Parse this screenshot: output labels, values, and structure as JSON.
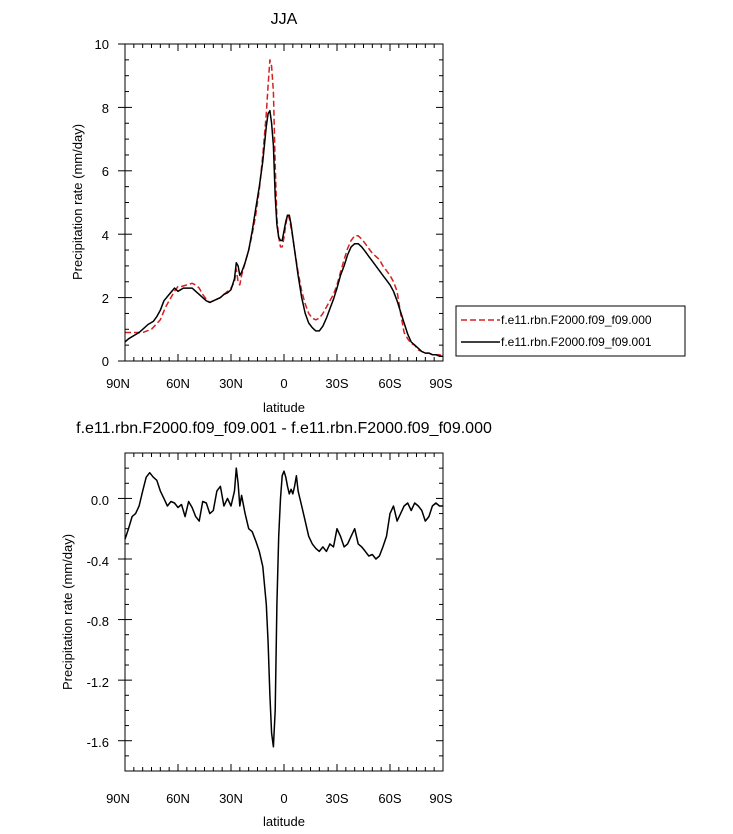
{
  "colors": {
    "ctrl": "#d62020",
    "test": "#000000",
    "axis": "#000000"
  },
  "chart_data": [
    {
      "type": "line",
      "title": "JJA",
      "xlabel": "latitude",
      "ylabel": "Precipitation rate (mm/day)",
      "xlim": [
        90,
        -90
      ],
      "ylim": [
        0,
        10
      ],
      "x_ticks": [
        90,
        60,
        30,
        0,
        -30,
        -60,
        -90
      ],
      "x_tick_labels": [
        "90N",
        "60N",
        "30N",
        "0",
        "30S",
        "60S",
        "90S"
      ],
      "y_ticks": [
        0,
        2,
        4,
        6,
        8,
        10
      ],
      "y_tick_labels": [
        "0",
        "2",
        "4",
        "6",
        "8",
        "10"
      ],
      "legend_position": "right",
      "series": [
        {
          "name": "f.e11.rbn.F2000.f09_f09.000",
          "style": "dashed",
          "color": "#d62020",
          "x": [
            90,
            85,
            80,
            75,
            70,
            67,
            64,
            62,
            60,
            58,
            55,
            52,
            50,
            48,
            46,
            44,
            42,
            40,
            38,
            36,
            34,
            32,
            30,
            28,
            27,
            26,
            25,
            24,
            22,
            20,
            18,
            16,
            14,
            12,
            10,
            9,
            8,
            7,
            6,
            5,
            4,
            3,
            2,
            1,
            0,
            -1,
            -2,
            -3,
            -4,
            -5,
            -6,
            -8,
            -10,
            -12,
            -14,
            -16,
            -18,
            -20,
            -22,
            -24,
            -26,
            -28,
            -30,
            -32,
            -34,
            -36,
            -38,
            -40,
            -42,
            -44,
            -46,
            -48,
            -50,
            -52,
            -54,
            -56,
            -58,
            -60,
            -62,
            -64,
            -66,
            -68,
            -70,
            -72,
            -74,
            -76,
            -78,
            -80,
            -82,
            -84,
            -86,
            -88,
            -90
          ],
          "y": [
            0.9,
            0.9,
            0.9,
            1.0,
            1.3,
            1.7,
            2.0,
            2.2,
            2.35,
            2.35,
            2.4,
            2.45,
            2.4,
            2.3,
            2.1,
            1.95,
            1.85,
            1.9,
            1.95,
            2.0,
            2.1,
            2.2,
            2.3,
            2.5,
            2.9,
            2.5,
            2.4,
            2.7,
            3.1,
            3.5,
            4.0,
            4.6,
            5.4,
            6.5,
            7.8,
            8.7,
            9.5,
            9.3,
            8.5,
            6.2,
            4.5,
            3.9,
            3.6,
            3.6,
            3.9,
            4.3,
            4.6,
            4.5,
            4.2,
            3.9,
            3.5,
            2.8,
            2.2,
            1.8,
            1.5,
            1.35,
            1.3,
            1.35,
            1.5,
            1.7,
            1.9,
            2.1,
            2.4,
            2.8,
            3.2,
            3.55,
            3.8,
            3.95,
            3.95,
            3.85,
            3.7,
            3.55,
            3.4,
            3.3,
            3.2,
            3.0,
            2.85,
            2.7,
            2.5,
            2.2,
            1.5,
            0.9,
            0.7,
            0.55,
            0.5,
            0.35,
            0.3,
            0.25,
            0.25,
            0.2,
            0.2,
            0.2,
            0.15
          ]
        },
        {
          "name": "f.e11.rbn.F2000.f09_f09.001",
          "style": "solid",
          "color": "#000000",
          "x": [
            90,
            88,
            85,
            82,
            80,
            77,
            74,
            72,
            70,
            68,
            65,
            62,
            60,
            57,
            55,
            52,
            50,
            48,
            46,
            44,
            42,
            40,
            38,
            36,
            34,
            32,
            30,
            28,
            27,
            26,
            25,
            24,
            22,
            20,
            18,
            16,
            14,
            12,
            10,
            9,
            8,
            7,
            6,
            5,
            4,
            3,
            2,
            1,
            0,
            -1,
            -2,
            -3,
            -4,
            -5,
            -6,
            -8,
            -10,
            -12,
            -14,
            -16,
            -18,
            -20,
            -22,
            -24,
            -26,
            -28,
            -30,
            -32,
            -34,
            -36,
            -38,
            -40,
            -42,
            -44,
            -46,
            -48,
            -50,
            -52,
            -54,
            -56,
            -58,
            -60,
            -62,
            -64,
            -66,
            -68,
            -70,
            -72,
            -74,
            -76,
            -78,
            -80,
            -82,
            -84,
            -86,
            -88,
            -90
          ],
          "y": [
            0.6,
            0.7,
            0.8,
            0.9,
            1.0,
            1.15,
            1.25,
            1.4,
            1.6,
            1.9,
            2.1,
            2.3,
            2.2,
            2.3,
            2.3,
            2.3,
            2.2,
            2.1,
            2.0,
            1.9,
            1.85,
            1.9,
            1.95,
            2.0,
            2.1,
            2.15,
            2.25,
            2.6,
            3.1,
            3.0,
            2.7,
            2.8,
            3.1,
            3.5,
            4.1,
            4.8,
            5.5,
            6.3,
            7.4,
            7.8,
            7.9,
            7.5,
            6.8,
            5.2,
            4.3,
            3.9,
            3.8,
            3.8,
            4.1,
            4.4,
            4.6,
            4.6,
            4.3,
            3.9,
            3.5,
            2.7,
            2.0,
            1.5,
            1.2,
            1.05,
            0.95,
            0.95,
            1.1,
            1.35,
            1.65,
            1.95,
            2.3,
            2.7,
            3.0,
            3.35,
            3.6,
            3.7,
            3.7,
            3.6,
            3.45,
            3.3,
            3.15,
            3.0,
            2.85,
            2.7,
            2.55,
            2.4,
            2.2,
            1.9,
            1.55,
            1.2,
            0.85,
            0.6,
            0.5,
            0.4,
            0.3,
            0.25,
            0.25,
            0.2,
            0.2,
            0.15,
            0.15
          ]
        }
      ]
    },
    {
      "type": "line",
      "title": "f.e11.rbn.F2000.f09_f09.001 - f.e11.rbn.F2000.f09_f09.000",
      "xlabel": "latitude",
      "ylabel": "Precipitation rate (mm/day)",
      "xlim": [
        90,
        -90
      ],
      "ylim": [
        -1.8,
        0.3
      ],
      "x_ticks": [
        90,
        60,
        30,
        0,
        -30,
        -60,
        -90
      ],
      "x_tick_labels": [
        "90N",
        "60N",
        "30N",
        "0",
        "30S",
        "60S",
        "90S"
      ],
      "y_ticks": [
        0.0,
        -0.4,
        -0.8,
        -1.2,
        -1.6
      ],
      "y_tick_labels": [
        "0.0",
        "-0.4",
        "-0.8",
        "-1.2",
        "-1.6"
      ],
      "series": [
        {
          "style": "solid",
          "color": "#000000",
          "x": [
            90,
            88,
            86,
            84,
            82,
            80,
            78,
            76,
            74,
            72,
            70,
            68,
            66,
            64,
            62,
            60,
            58,
            56,
            54,
            52,
            50,
            48,
            46,
            44,
            42,
            40,
            38,
            36,
            34,
            32,
            30,
            28,
            27,
            26,
            25,
            24,
            22,
            20,
            18,
            16,
            14,
            12,
            10,
            9,
            8,
            7,
            6,
            5,
            4,
            3,
            2,
            1,
            0,
            -1,
            -2,
            -3,
            -4,
            -5,
            -6,
            -7,
            -8,
            -10,
            -12,
            -14,
            -16,
            -18,
            -20,
            -22,
            -24,
            -26,
            -28,
            -30,
            -32,
            -34,
            -36,
            -38,
            -40,
            -42,
            -44,
            -46,
            -48,
            -50,
            -52,
            -54,
            -56,
            -58,
            -60,
            -62,
            -64,
            -66,
            -68,
            -70,
            -72,
            -74,
            -76,
            -78,
            -80,
            -82,
            -84,
            -86,
            -88,
            -90
          ],
          "y": [
            -0.27,
            -0.2,
            -0.12,
            -0.1,
            -0.05,
            0.05,
            0.14,
            0.17,
            0.14,
            0.12,
            0.05,
            0.0,
            -0.05,
            -0.02,
            -0.03,
            -0.06,
            -0.04,
            -0.12,
            -0.02,
            -0.06,
            -0.12,
            -0.15,
            -0.02,
            -0.03,
            -0.1,
            -0.08,
            0.05,
            0.08,
            -0.05,
            0.0,
            -0.05,
            0.05,
            0.2,
            0.1,
            -0.05,
            0.02,
            -0.1,
            -0.2,
            -0.22,
            -0.28,
            -0.35,
            -0.45,
            -0.7,
            -0.95,
            -1.3,
            -1.55,
            -1.64,
            -1.4,
            -0.7,
            -0.25,
            0.0,
            0.15,
            0.18,
            0.14,
            0.08,
            0.03,
            0.06,
            0.03,
            0.08,
            0.15,
            0.05,
            -0.05,
            -0.15,
            -0.25,
            -0.3,
            -0.33,
            -0.35,
            -0.32,
            -0.35,
            -0.3,
            -0.32,
            -0.2,
            -0.25,
            -0.32,
            -0.3,
            -0.25,
            -0.2,
            -0.3,
            -0.32,
            -0.35,
            -0.38,
            -0.37,
            -0.4,
            -0.38,
            -0.32,
            -0.25,
            -0.1,
            -0.05,
            -0.15,
            -0.1,
            -0.05,
            -0.03,
            -0.08,
            -0.03,
            -0.05,
            -0.08,
            -0.15,
            -0.12,
            -0.05,
            -0.03,
            -0.05,
            -0.05
          ]
        }
      ]
    }
  ]
}
